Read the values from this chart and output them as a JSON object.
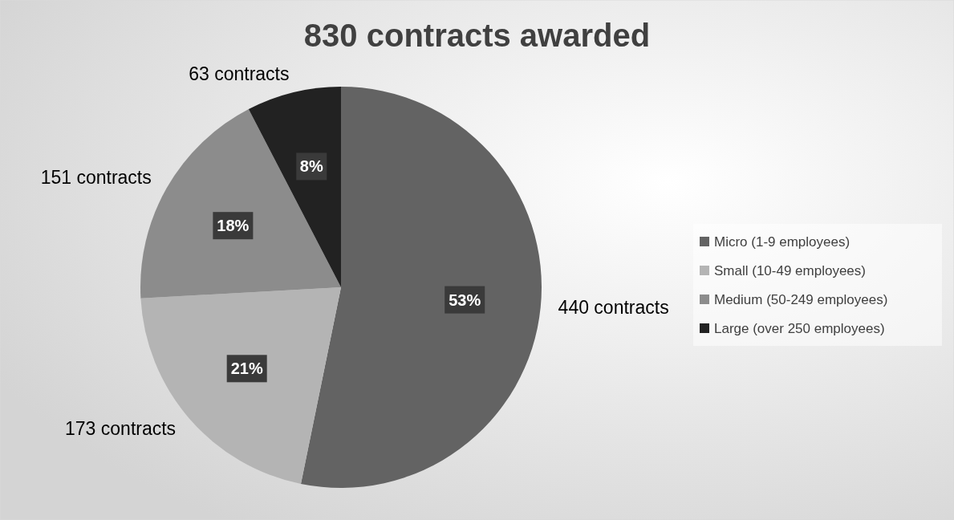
{
  "chart_data": {
    "type": "pie",
    "title": "830 contracts awarded",
    "categories": [
      "Micro (1-9 employees)",
      "Small (10-49 employees)",
      "Medium (50-249 employees)",
      "Large (over 250 employees)"
    ],
    "values": [
      440,
      173,
      151,
      63
    ],
    "colors": [
      "#636363",
      "#b4b4b4",
      "#8c8c8c",
      "#222222"
    ],
    "value_labels": [
      "440 contracts",
      "173 contracts",
      "151 contracts",
      "63 contracts"
    ],
    "annotations": [
      {
        "text": "53%",
        "x": "Micro (1-9 employees)"
      },
      {
        "text": "21%",
        "x": "Small (10-49 employees)"
      },
      {
        "text": "18%",
        "x": "Medium (50-249 employees)"
      },
      {
        "text": "8%",
        "x": "Large (over 250 employees)"
      }
    ],
    "legend": "right"
  }
}
